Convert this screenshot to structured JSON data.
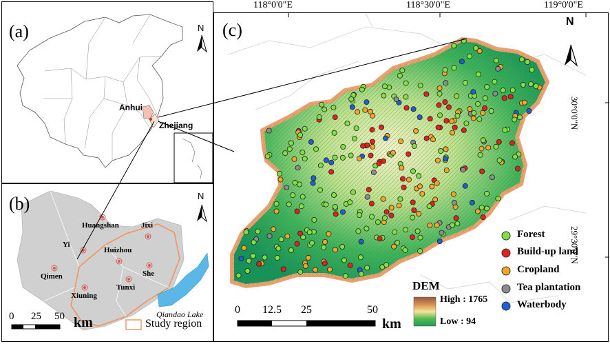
{
  "panel_a": {
    "label": "(a)",
    "north": "N",
    "anhui_label": "Anhui",
    "zhejiang_label": "Zhejiang"
  },
  "panel_b": {
    "label": "(b)",
    "north": "N",
    "cities": [
      {
        "name": "Huangshan"
      },
      {
        "name": "Jixi"
      },
      {
        "name": "Yi"
      },
      {
        "name": "Huizhou"
      },
      {
        "name": "Qimen"
      },
      {
        "name": "She"
      },
      {
        "name": "Tunxi"
      },
      {
        "name": "Xiuning"
      }
    ],
    "lake_label": "Qiandao Lake",
    "scale_ticks": [
      "0",
      "25",
      "50"
    ],
    "scale_unit": "km",
    "legend_label": "Study region"
  },
  "panel_c": {
    "label": "(c)",
    "north": "N",
    "lon_ticks": [
      "118°0'0\"E",
      "118°30'0\"E",
      "119°0'0\"E"
    ],
    "lat_ticks": [
      "30°0'0\"N",
      "29°30'0\"N"
    ],
    "dem_title": "DEM",
    "dem_high": "High : 1765",
    "dem_low": "Low : 94",
    "scale_ticks": [
      "0",
      "12.5",
      "25",
      "50"
    ],
    "scale_unit": "km",
    "legend": [
      {
        "label": "Forest",
        "color": "#7ee043"
      },
      {
        "label": "Build-up land",
        "color": "#e8201c"
      },
      {
        "label": "Cropland",
        "color": "#f5a623"
      },
      {
        "label": "Tea plantation",
        "color": "#8c8c8c"
      },
      {
        "label": "Waterbody",
        "color": "#1f5fd6"
      }
    ]
  }
}
